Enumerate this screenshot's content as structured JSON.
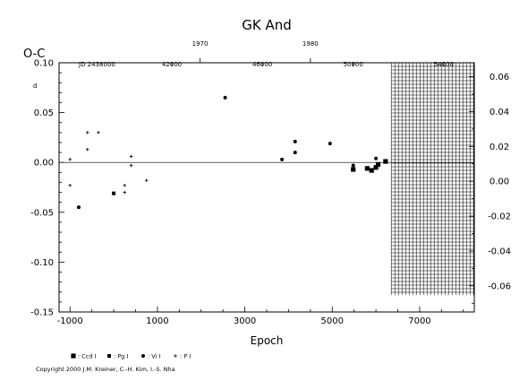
{
  "chart_data": {
    "type": "scatter",
    "title": "GK And",
    "ylabel": "O-C",
    "ylabel_exponent": "d",
    "xlabel": "Epoch",
    "xlim": [
      -1250,
      8250
    ],
    "ylim": [
      -0.15,
      0.1
    ],
    "right_ylim": [
      -0.075,
      0.068
    ],
    "x_ticks": [
      -1000,
      1000,
      3000,
      5000,
      7000
    ],
    "y_ticks": [
      -0.15,
      -0.1,
      -0.05,
      0.0,
      0.05,
      0.1
    ],
    "y_tick_labels": [
      "-0.15",
      "-0.10",
      "-0.05",
      "0.00",
      "0.05",
      "0.10"
    ],
    "right_y_ticks": [
      -0.06,
      -0.04,
      -0.02,
      0.0,
      0.02,
      0.04,
      0.06
    ],
    "right_y_tick_labels": [
      "-0.06",
      "-0.04",
      "-0.02",
      "0.00",
      "0.02",
      "0.04",
      "0.06"
    ],
    "top_year_ticks": [
      {
        "label": "1970",
        "epoch": 1975
      },
      {
        "label": "1980",
        "epoch": 4500
      }
    ],
    "jd_label": "JD 2438000",
    "jd_ticks": [
      {
        "label": "42000",
        "epoch": 1330
      },
      {
        "label": "46000",
        "epoch": 3400
      },
      {
        "label": "50000",
        "epoch": 5480
      },
      {
        "label": "54000",
        "epoch": 7550
      }
    ],
    "zero_line": true,
    "hatched_region_x": [
      6350,
      8250
    ],
    "hatched_region_y": [
      -0.133,
      0.1
    ],
    "series": [
      {
        "name": ": Ccd I",
        "marker": "filled-square",
        "x": [
          5480,
          5800,
          5900,
          6000,
          6050,
          6220
        ],
        "y": [
          -0.007,
          -0.006,
          -0.008,
          -0.005,
          -0.002,
          0.001
        ]
      },
      {
        "name": ": Pg I",
        "marker": "small-square",
        "x": [
          0
        ],
        "y": [
          -0.031
        ]
      },
      {
        "name": ": Vi I",
        "marker": "dot",
        "x": [
          -800,
          2550,
          3850,
          4150,
          4150,
          4950,
          5480,
          6000
        ],
        "y": [
          -0.045,
          0.065,
          0.003,
          0.01,
          0.021,
          0.019,
          -0.003,
          0.004
        ]
      },
      {
        "name": ": P I",
        "marker": "plus",
        "x": [
          -1000,
          -1000,
          -600,
          -600,
          -350,
          250,
          250,
          400,
          400,
          750
        ],
        "y": [
          -0.023,
          0.003,
          0.03,
          0.013,
          0.03,
          -0.023,
          -0.03,
          0.006,
          -0.003,
          -0.018
        ]
      }
    ]
  },
  "copyright": "Copyright 2000 J.M. Kreiner, C.-H. Kim, I.-S. Nha"
}
